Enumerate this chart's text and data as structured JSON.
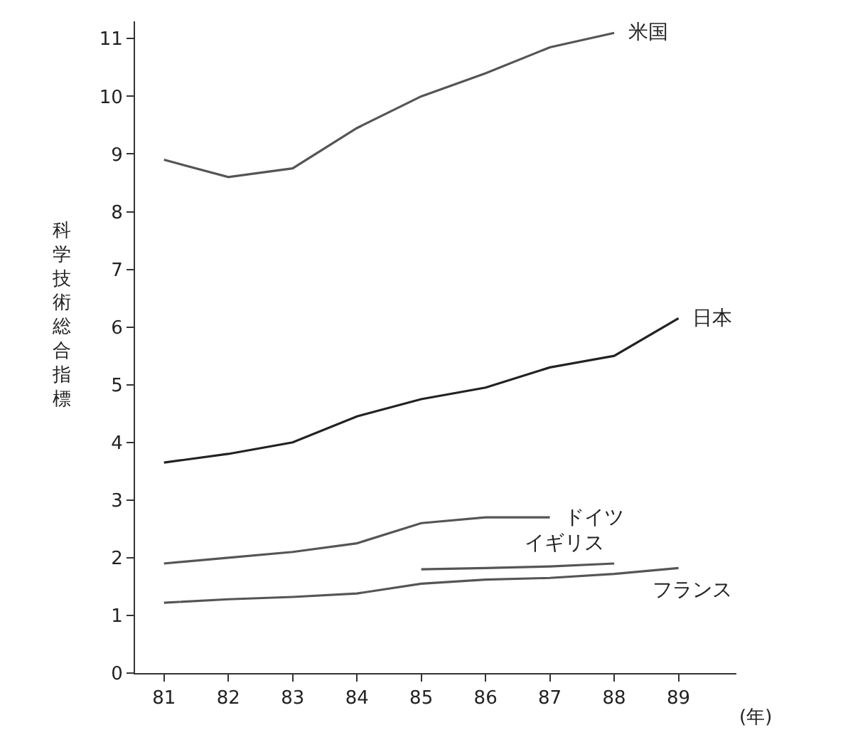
{
  "chart_data": {
    "type": "line",
    "ylabel": "科学技術総合指標",
    "xlabel": "(年)",
    "x": [
      81,
      82,
      83,
      84,
      85,
      86,
      87,
      88,
      89
    ],
    "xlim": [
      80.55,
      89.9
    ],
    "xticks": [
      81,
      82,
      83,
      84,
      85,
      86,
      87,
      88,
      89
    ],
    "ylim": [
      0,
      11.3
    ],
    "yticks": [
      0,
      1,
      2,
      3,
      4,
      5,
      6,
      7,
      8,
      9,
      10,
      11
    ],
    "legend": false,
    "marker": "none",
    "line_style": "solid",
    "series": [
      {
        "name": "米国",
        "color": "#555555",
        "values": [
          8.9,
          8.6,
          8.75,
          9.45,
          10.0,
          10.4,
          10.85,
          11.1,
          null
        ]
      },
      {
        "name": "日本",
        "color": "#222222",
        "values": [
          3.65,
          3.8,
          4.0,
          4.45,
          4.75,
          4.95,
          5.3,
          5.5,
          6.15
        ]
      },
      {
        "name": "ドイツ",
        "color": "#555555",
        "values": [
          1.9,
          2.0,
          2.1,
          2.25,
          2.6,
          2.7,
          2.7,
          null,
          null
        ]
      },
      {
        "name": "イギリス",
        "color": "#555555",
        "values": [
          null,
          null,
          null,
          null,
          1.8,
          1.82,
          1.85,
          1.9,
          null
        ]
      },
      {
        "name": "フランス",
        "color": "#555555",
        "values": [
          1.22,
          1.28,
          1.32,
          1.38,
          1.55,
          1.62,
          1.65,
          1.72,
          1.82
        ]
      }
    ]
  }
}
